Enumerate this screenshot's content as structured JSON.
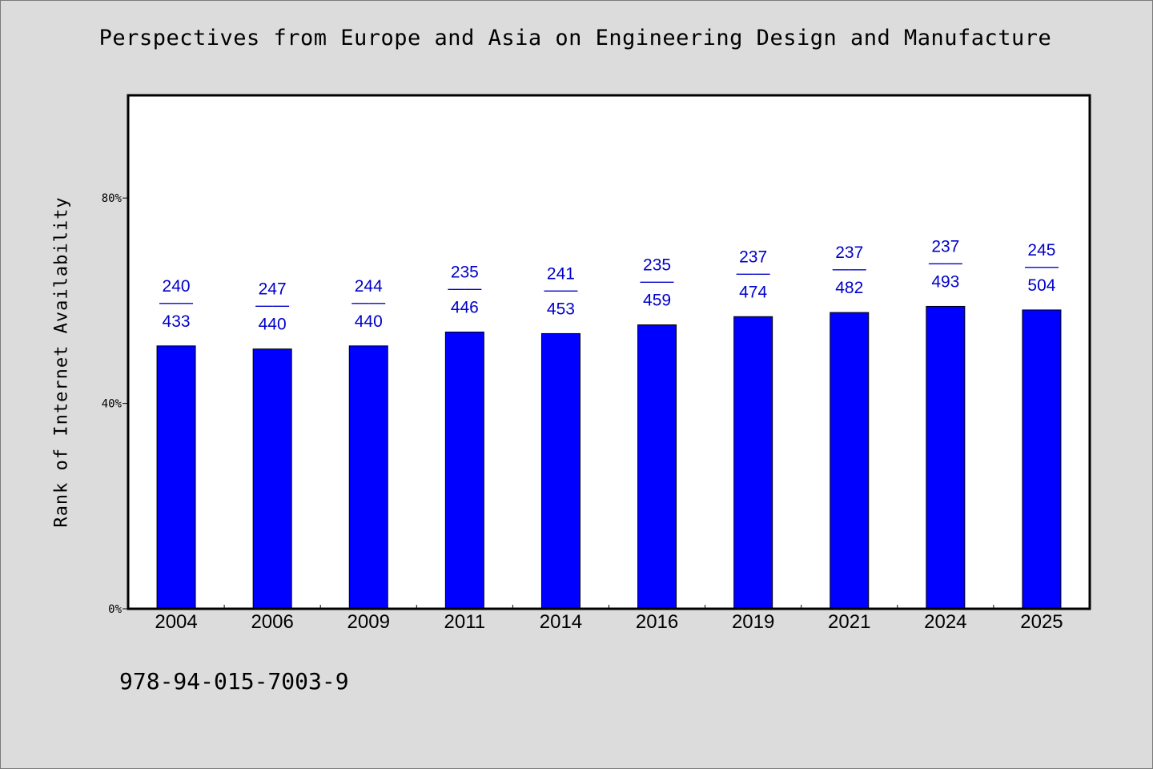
{
  "chart_data": {
    "type": "bar",
    "title": "Perspectives from Europe and Asia on Engineering Design and Manufacture",
    "xlabel": "",
    "ylabel": "Rank of Internet Availability",
    "footnote": "978-94-015-7003-9",
    "categories": [
      "2004",
      "2006",
      "2009",
      "2011",
      "2014",
      "2016",
      "2019",
      "2021",
      "2024",
      "2025"
    ],
    "values": [
      51.2,
      50.6,
      51.2,
      53.9,
      53.6,
      55.3,
      56.9,
      57.7,
      58.9,
      58.2
    ],
    "data_labels": [
      {
        "top": "240",
        "sep": "——",
        "bottom": "433"
      },
      {
        "top": "247",
        "sep": "——",
        "bottom": "440"
      },
      {
        "top": "244",
        "sep": "——",
        "bottom": "440"
      },
      {
        "top": "235",
        "sep": "——",
        "bottom": "446"
      },
      {
        "top": "241",
        "sep": "——",
        "bottom": "453"
      },
      {
        "top": "235",
        "sep": "——",
        "bottom": "459"
      },
      {
        "top": "237",
        "sep": "——",
        "bottom": "474"
      },
      {
        "top": "237",
        "sep": "——",
        "bottom": "482"
      },
      {
        "top": "237",
        "sep": "——",
        "bottom": "493"
      },
      {
        "top": "245",
        "sep": "——",
        "bottom": "504"
      }
    ],
    "ylim": [
      0,
      100
    ],
    "yticks": [
      0,
      40,
      80
    ],
    "ytick_labels": [
      "0%",
      "40%",
      "80%"
    ],
    "grid": false,
    "bar_color": "#0000ff",
    "label_color": "#0000cc"
  }
}
